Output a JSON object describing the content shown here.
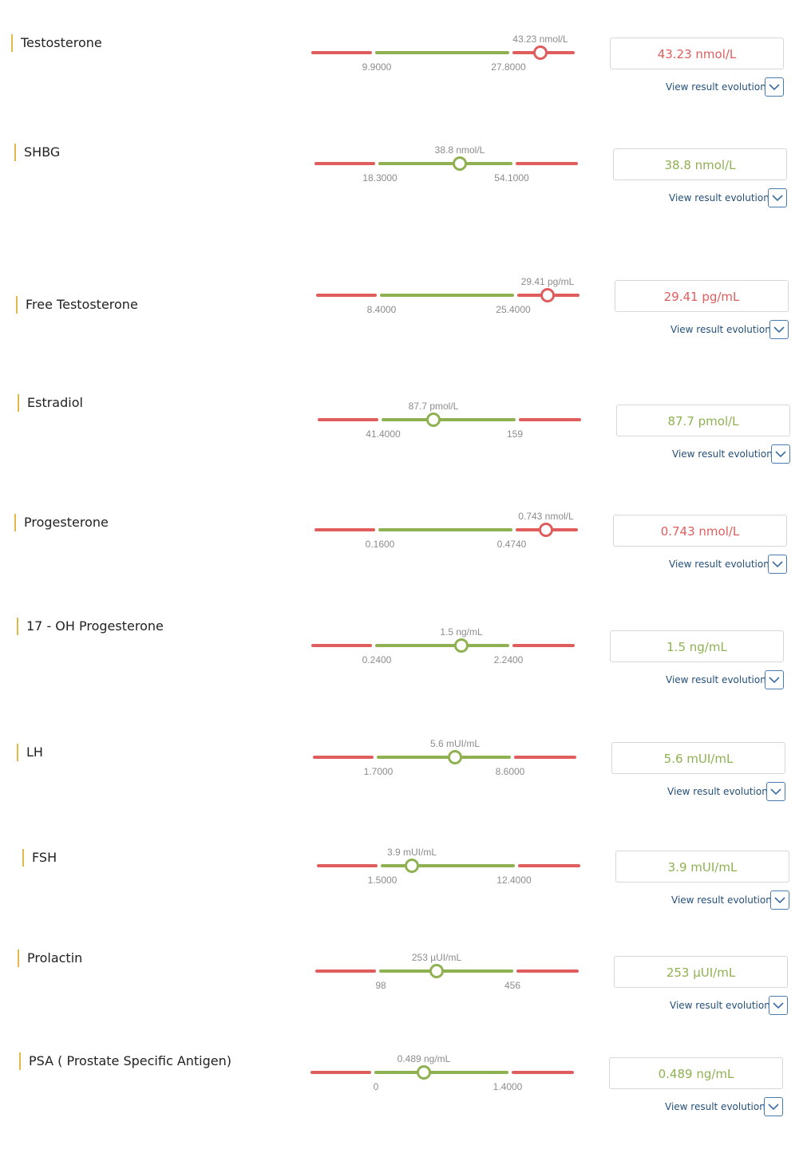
{
  "results": [
    {
      "name": "Testosterone",
      "value": "43.23",
      "unit": "nmol/L",
      "display": "43.23 nmol/L",
      "low": "9.9000",
      "high": "27.8000",
      "status": "high",
      "pos": 0.87
    },
    {
      "name": "SHBG",
      "value": "38.8",
      "unit": "nmol/L",
      "display": "38.8 nmol/L",
      "low": "18.3000",
      "high": "54.1000",
      "status": "ok",
      "pos": 0.55
    },
    {
      "name": "Free Testosterone",
      "value": "29.41",
      "unit": "pg/mL",
      "display": "29.41 pg/mL",
      "low": "8.4000",
      "high": "25.4000",
      "status": "high",
      "pos": 0.88
    },
    {
      "name": "Estradiol",
      "value": "87.7",
      "unit": "pmol/L",
      "display": "87.7 pmol/L",
      "low": "41.4000",
      "high": "159",
      "status": "ok",
      "pos": 0.44
    },
    {
      "name": "Progesterone",
      "value": "0.743",
      "unit": "nmol/L",
      "display": "0.743 nmol/L",
      "low": "0.1600",
      "high": "0.4740",
      "status": "high",
      "pos": 0.88
    },
    {
      "name": "17 - OH Progesterone",
      "value": "1.5",
      "unit": "ng/mL",
      "display": "1.5 ng/mL",
      "low": "0.2400",
      "high": "2.2400",
      "status": "ok",
      "pos": 0.57
    },
    {
      "name": "LH",
      "value": "5.6",
      "unit": "mUI/mL",
      "display": "5.6 mUI/mL",
      "low": "1.7000",
      "high": "8.6000",
      "status": "ok",
      "pos": 0.54
    },
    {
      "name": "FSH",
      "value": "3.9",
      "unit": "mUI/mL",
      "display": "3.9 mUI/mL",
      "low": "1.5000",
      "high": "12.4000",
      "status": "ok",
      "pos": 0.36
    },
    {
      "name": "Prolactin",
      "value": "253",
      "unit": "µUI/mL",
      "display": "253 µUI/mL",
      "low": "98",
      "high": "456",
      "status": "ok",
      "pos": 0.46
    },
    {
      "name": "PSA ( Prostate Specific Antigen)",
      "value": "0.489",
      "unit": "ng/mL",
      "display": "0.489 ng/mL",
      "low": "0",
      "high": "1.4000",
      "status": "ok",
      "pos": 0.43
    }
  ],
  "labels": {
    "view_evolution": "View result evolution"
  },
  "colors": {
    "high": "#e05d5d",
    "ok": "#8fb152",
    "accent": "#e0b94a",
    "link": "#24507a"
  },
  "icons": {
    "expand": "chevron-down-icon"
  }
}
